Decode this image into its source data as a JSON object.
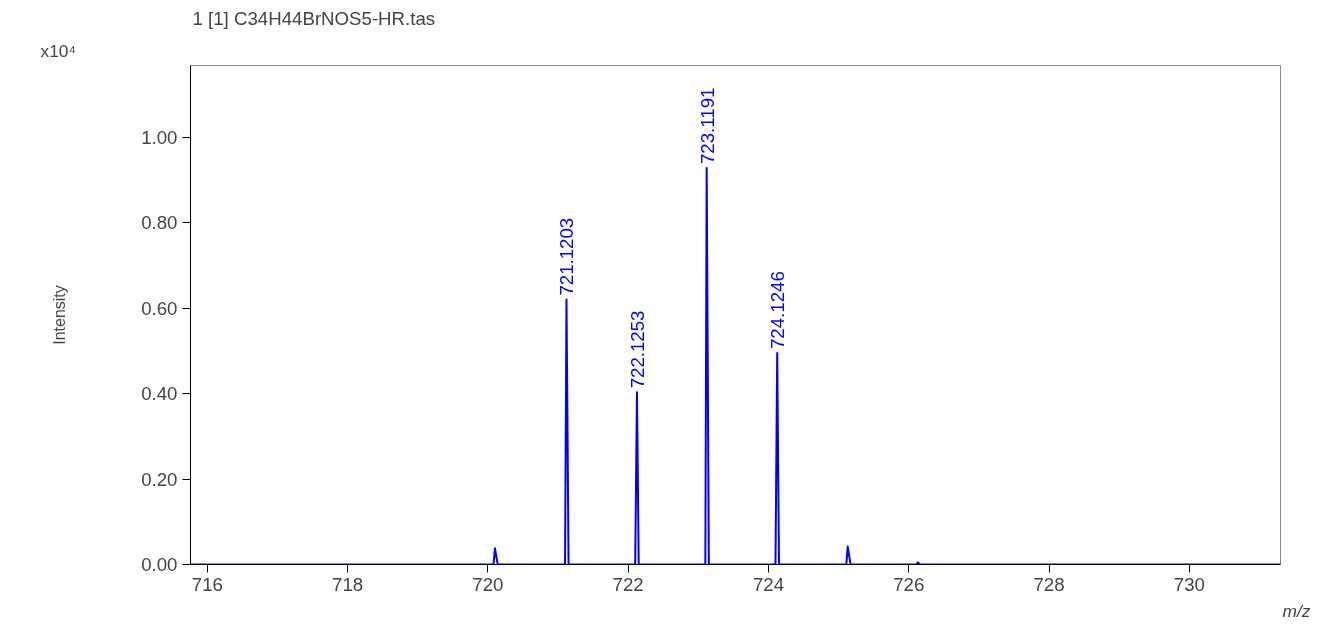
{
  "chart_data": {
    "type": "line",
    "title": "1 [1] C34H44BrNOS5-HR.tas",
    "xlabel": "m/z",
    "ylabel": "Intensity",
    "annotations": [
      "x10⁴",
      {
        "text": "721.1203",
        "x": 721.1203,
        "y": 0.62
      },
      {
        "text": "722.1253",
        "x": 722.1253,
        "y": 0.403
      },
      {
        "text": "723.1191",
        "x": 723.1191,
        "y": 0.928
      },
      {
        "text": "724.1246",
        "x": 724.1246,
        "y": 0.495
      }
    ],
    "series": [
      {
        "color": "#0000ff",
        "x": [
          715.76,
          720.08,
          720.1,
          720.14,
          721.1,
          721.1203,
          721.15,
          722.1,
          722.1253,
          722.15,
          723.1,
          723.1191,
          723.15,
          724.1,
          724.1246,
          724.15,
          725.11,
          725.13,
          725.17,
          726.11,
          726.13,
          726.16,
          731.3
        ],
        "values": [
          0,
          0,
          0.038,
          0,
          0,
          0.62,
          0,
          0,
          0.403,
          0,
          0,
          0.928,
          0,
          0,
          0.495,
          0,
          0,
          0.042,
          0,
          0,
          0.005,
          0,
          0
        ]
      }
    ],
    "xlim": [
      715.76,
      731.3
    ],
    "ylim": [
      0,
      1.168
    ],
    "xticks": [
      716,
      718,
      720,
      722,
      724,
      726,
      728,
      730
    ],
    "yticks": [
      {
        "value": 0,
        "label": "0.00"
      },
      {
        "value": 0.2,
        "label": "0.20"
      },
      {
        "value": 0.4,
        "label": "0.40"
      },
      {
        "value": 0.6,
        "label": "0.60"
      },
      {
        "value": 0.8,
        "label": "0.80"
      },
      {
        "value": 1.0,
        "label": "1.00"
      }
    ],
    "grid": false
  }
}
